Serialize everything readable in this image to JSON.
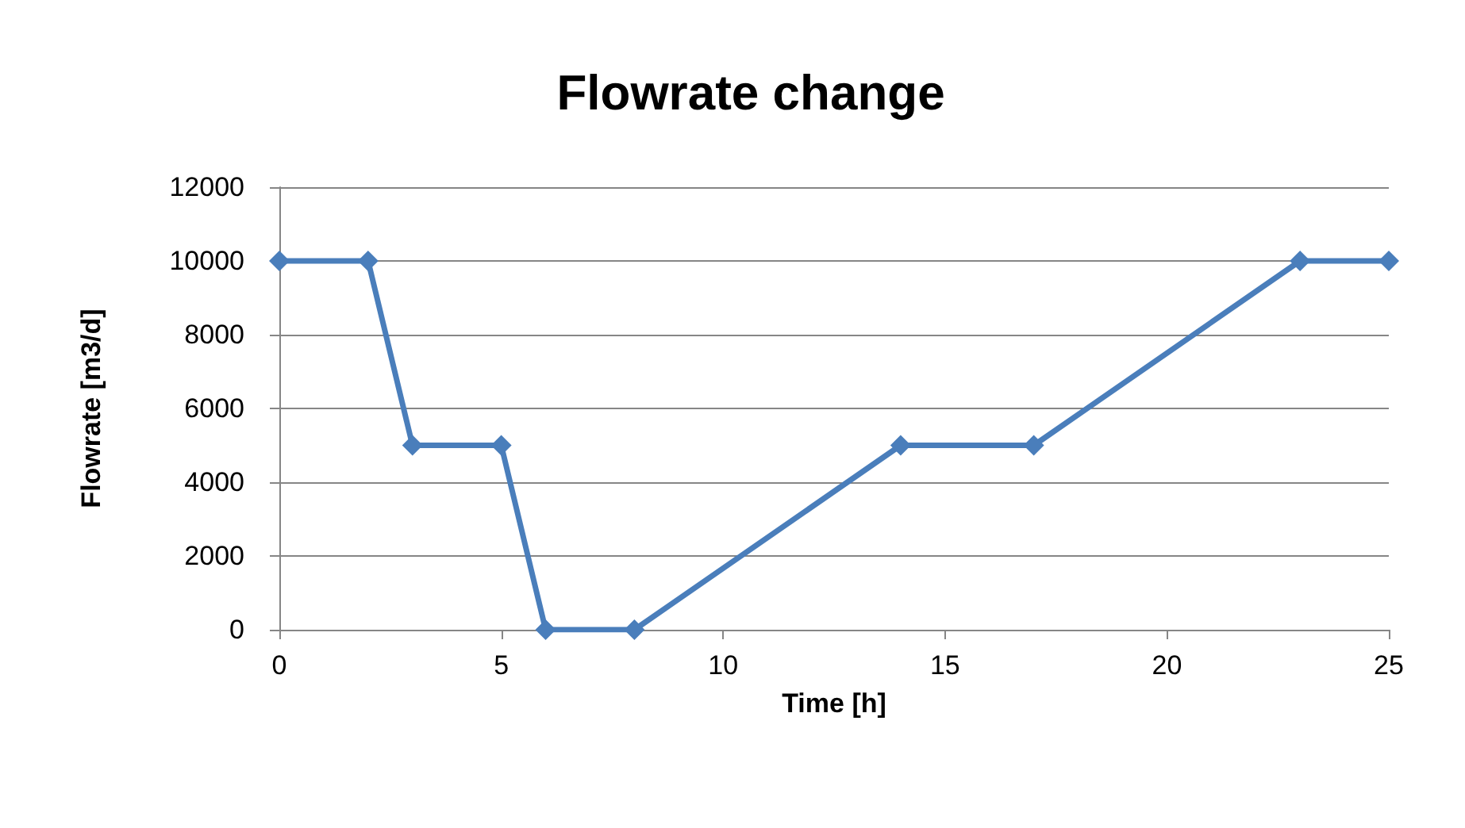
{
  "chart_data": {
    "type": "line",
    "title": "Flowrate change",
    "xlabel": "Time [h]",
    "ylabel": "Flowrate [m3/d]",
    "x": [
      0,
      2,
      3,
      5,
      6,
      8,
      14,
      17,
      23,
      25
    ],
    "series": [
      {
        "color": "#4a7ebb",
        "values": [
          10000,
          10000,
          5000,
          5000,
          0,
          0,
          5000,
          5000,
          10000,
          10000
        ]
      }
    ],
    "xlim": [
      0,
      25
    ],
    "xticks": [
      0,
      5,
      10,
      15,
      20,
      25
    ],
    "ylim": [
      0,
      12000
    ],
    "yticks": [
      0,
      2000,
      4000,
      6000,
      8000,
      10000,
      12000
    ],
    "grid": "y",
    "marker": "diamond",
    "line_style": "solid"
  }
}
